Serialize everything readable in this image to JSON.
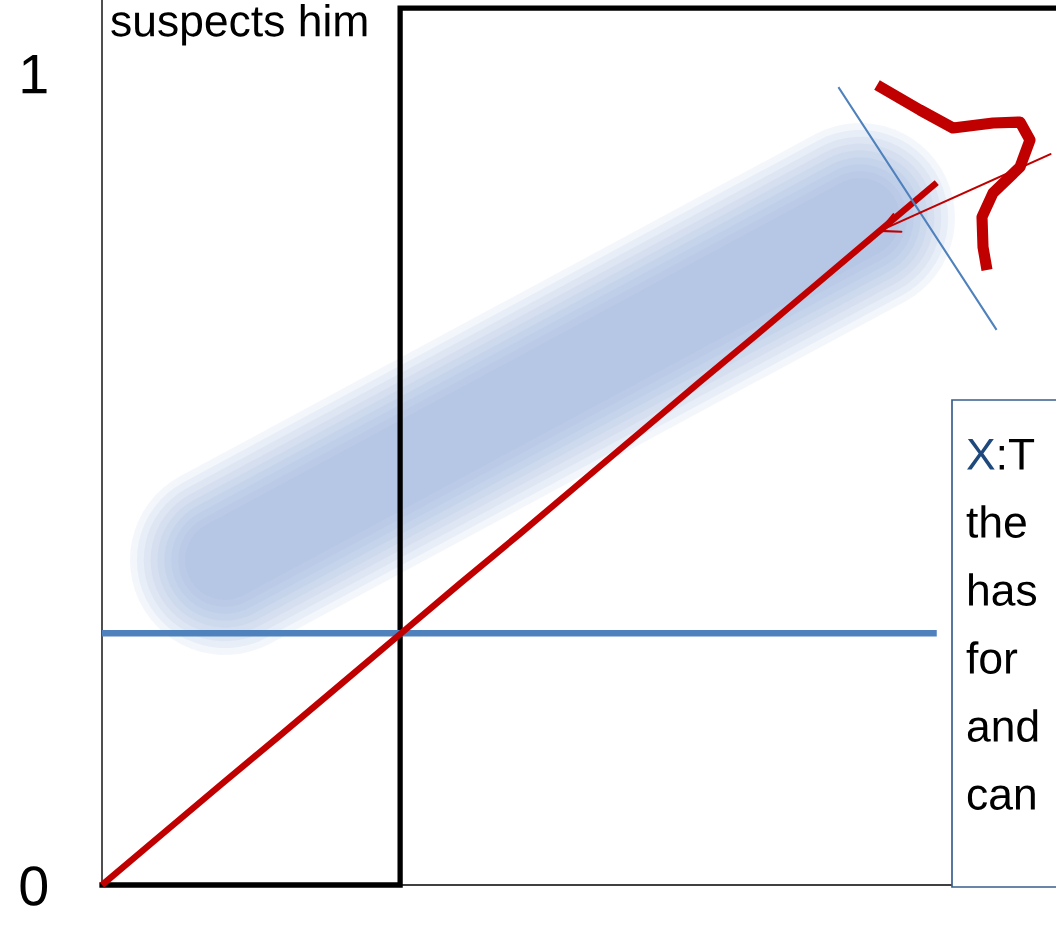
{
  "chart_data": {
    "type": "line",
    "ylabel": "suspects him",
    "annotations": [
      "X:T\nthe\nhas\nfor\nand\ncan"
    ],
    "categories": [
      null,
      null,
      null,
      null,
      null,
      null,
      null,
      null,
      null,
      null,
      null,
      null,
      null,
      null,
      null,
      null,
      null
    ],
    "ylim": [
      0,
      1.09
    ],
    "yticks": [
      0,
      1
    ],
    "series": [
      {
        "type": "step",
        "color": "#000000",
        "values": [
          0,
          0,
          0,
          0,
          0,
          1.08,
          1.08,
          1.08,
          1.08,
          1.08,
          1.08,
          1.08,
          1.08,
          1.08,
          1.08,
          1.08,
          1.08
        ]
      },
      {
        "color": "#4f81bd",
        "values": [
          0.31,
          0.31,
          0.31,
          0.31,
          0.31,
          0.31,
          0.31,
          0.31,
          0.31,
          0.31,
          0.31,
          0.31,
          0.31,
          0.31,
          0.31,
          null,
          null
        ]
      },
      {
        "color": "#c00000",
        "values": [
          0,
          0.062,
          0.124,
          0.185,
          0.247,
          0.309,
          0.371,
          0.432,
          0.494,
          0.556,
          0.618,
          0.679,
          0.741,
          0.803,
          0.865,
          null,
          null
        ]
      }
    ]
  }
}
